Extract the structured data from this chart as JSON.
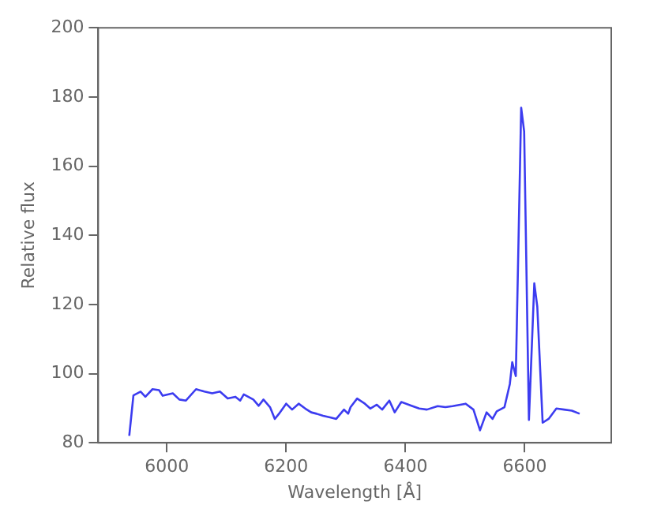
{
  "chart_data": {
    "type": "line",
    "xlabel": "Wavelength [Å]",
    "ylabel": "Relative flux",
    "xlim": [
      5885,
      6745
    ],
    "ylim": [
      80,
      200
    ],
    "xticks": [
      6000,
      6200,
      6400,
      6600
    ],
    "yticks": [
      80,
      100,
      120,
      140,
      160,
      180,
      200
    ],
    "grid": false,
    "legend": false,
    "marker": "none",
    "line_style": "solid",
    "series": [
      {
        "color": "#3c3cf0",
        "x": [
          5937,
          5944,
          5956,
          5964,
          5976,
          5987,
          5993,
          6010,
          6021,
          6032,
          6049,
          6063,
          6076,
          6089,
          6102,
          6115,
          6123,
          6129,
          6145,
          6154,
          6162,
          6173,
          6181,
          6188,
          6200,
          6210,
          6221,
          6232,
          6242,
          6251,
          6262,
          6275,
          6284,
          6297,
          6304,
          6308,
          6319,
          6332,
          6341,
          6352,
          6361,
          6373,
          6382,
          6393,
          6410,
          6423,
          6436,
          6454,
          6467,
          6479,
          6501,
          6514,
          6525,
          6536,
          6546,
          6553,
          6566,
          6575,
          6579,
          6585,
          6594,
          6599,
          6607,
          6616,
          6621,
          6630,
          6640,
          6653,
          6666,
          6679,
          6692
        ],
        "values": [
          82,
          93.7,
          94.8,
          93.3,
          95.5,
          95.2,
          93.6,
          94.3,
          92.5,
          92.2,
          95.5,
          94.8,
          94.3,
          94.8,
          92.8,
          93.3,
          92.2,
          94,
          92.5,
          90.7,
          92.5,
          90.3,
          86.9,
          88.4,
          91.3,
          89.6,
          91.3,
          89.9,
          88.8,
          88.4,
          87.8,
          87.3,
          86.9,
          89.6,
          88.4,
          90.3,
          92.8,
          91.3,
          89.9,
          91,
          89.6,
          92.2,
          88.8,
          91.8,
          90.7,
          89.9,
          89.6,
          90.6,
          90.3,
          90.6,
          91.3,
          89.6,
          83.6,
          88.8,
          86.9,
          89.1,
          90.3,
          97,
          103.3,
          99.3,
          176.9,
          170,
          86.6,
          126.1,
          119.4,
          85.8,
          86.9,
          89.9,
          89.6,
          89.3,
          88.4
        ]
      }
    ]
  }
}
